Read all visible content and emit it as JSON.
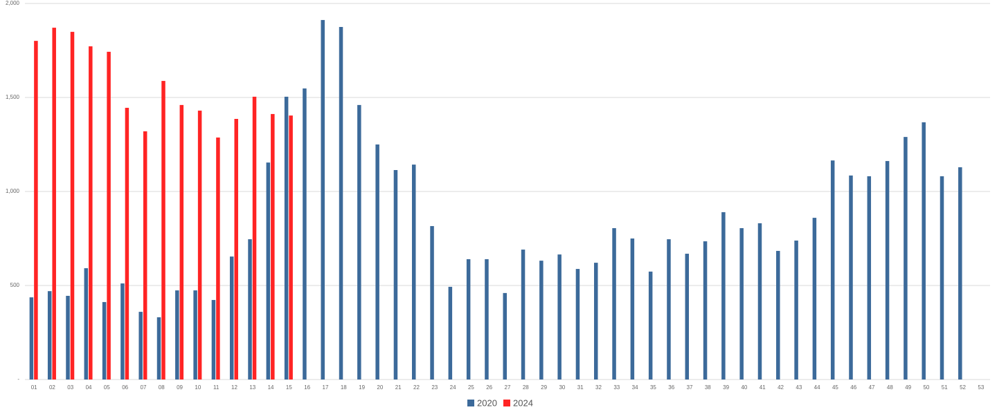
{
  "chart_data": {
    "type": "bar",
    "categories": [
      "01",
      "02",
      "03",
      "04",
      "05",
      "06",
      "07",
      "08",
      "09",
      "10",
      "11",
      "12",
      "13",
      "14",
      "15",
      "16",
      "17",
      "18",
      "19",
      "20",
      "21",
      "22",
      "23",
      "24",
      "25",
      "26",
      "27",
      "28",
      "29",
      "30",
      "31",
      "32",
      "33",
      "34",
      "35",
      "36",
      "37",
      "38",
      "39",
      "40",
      "41",
      "42",
      "43",
      "44",
      "45",
      "46",
      "47",
      "48",
      "49",
      "50",
      "51",
      "52",
      "53"
    ],
    "series": [
      {
        "name": "2020",
        "color": "#3c6a9a",
        "values": [
          437,
          470,
          445,
          592,
          412,
          511,
          360,
          331,
          474,
          474,
          423,
          654,
          746,
          1154,
          1504,
          1548,
          1912,
          1875,
          1460,
          1250,
          1114,
          1143,
          816,
          493,
          640,
          640,
          460,
          691,
          632,
          665,
          588,
          621,
          805,
          750,
          574,
          746,
          669,
          735,
          890,
          805,
          831,
          684,
          739,
          860,
          1165,
          1085,
          1081,
          1162,
          1290,
          1368,
          1081,
          1129,
          null
        ]
      },
      {
        "name": "2024",
        "color": "#ff2424",
        "values": [
          1801,
          1871,
          1849,
          1772,
          1743,
          1445,
          1320,
          1588,
          1460,
          1430,
          1287,
          1386,
          1504,
          1412,
          1404,
          null,
          null,
          null,
          null,
          null,
          null,
          null,
          null,
          null,
          null,
          null,
          null,
          null,
          null,
          null,
          null,
          null,
          null,
          null,
          null,
          null,
          null,
          null,
          null,
          null,
          null,
          null,
          null,
          null,
          null,
          null,
          null,
          null,
          null,
          null,
          null,
          null,
          null
        ]
      }
    ],
    "ylim": [
      0,
      2000
    ],
    "yticks": [
      {
        "value": 0,
        "label": "-"
      },
      500,
      {
        "value": 1000,
        "label": "1,000"
      },
      {
        "value": 1500,
        "label": "1,500"
      },
      {
        "value": 2000,
        "label": "2,000"
      }
    ],
    "grid": true
  }
}
